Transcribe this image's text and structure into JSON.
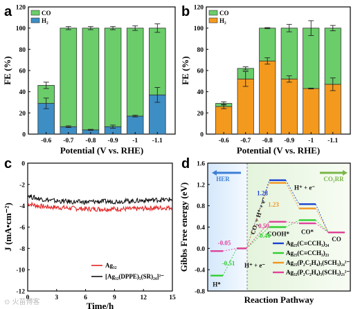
{
  "chart_data": [
    {
      "panel": "a",
      "type": "bar",
      "stacked": true,
      "categories": [
        "-0.6",
        "-0.7",
        "-0.8",
        "-0.9",
        "-1",
        "-1.1"
      ],
      "series": [
        {
          "name": "CO",
          "color": "#6acd6a",
          "values": [
            17,
            93,
            96,
            93,
            83,
            63
          ]
        },
        {
          "name": "H2",
          "color": "#3d8ec4",
          "values": [
            29,
            7,
            4,
            7,
            17,
            37
          ]
        }
      ],
      "h2_errors": [
        5,
        0.8,
        0.5,
        1.5,
        0.8,
        7
      ],
      "total_errors": [
        3,
        1.5,
        1.5,
        1.5,
        2.2,
        4
      ],
      "xlabel": "Potential (V vs. RHE)",
      "ylabel": "FE (%)",
      "ylim": [
        0,
        120
      ],
      "yticks": [
        "0",
        "20",
        "40",
        "60",
        "80",
        "100",
        "120"
      ],
      "legend": [
        "CO",
        "H₂"
      ]
    },
    {
      "panel": "b",
      "type": "bar",
      "stacked": true,
      "categories": [
        "-0.6",
        "-0.7",
        "-0.8",
        "-0.9",
        "-1",
        "-1.1"
      ],
      "series": [
        {
          "name": "H2",
          "color": "#f39a1e",
          "values": [
            26,
            52,
            69,
            52,
            43,
            47
          ]
        },
        {
          "name": "CO",
          "color": "#6acd6a",
          "values": [
            3,
            10,
            31,
            48,
            57,
            53
          ]
        }
      ],
      "h2_errors": [
        2,
        7,
        3,
        3,
        0.4,
        6
      ],
      "total_errors": [
        1.5,
        1.5,
        0.5,
        3.5,
        7,
        2.5
      ],
      "xlabel": "Potential (V vs. RHE)",
      "ylabel": "FE (%)",
      "ylim": [
        0,
        120
      ],
      "yticks": [
        "0",
        "20",
        "40",
        "60",
        "80",
        "100",
        "120"
      ],
      "legend": [
        "CO",
        "H₂"
      ]
    },
    {
      "panel": "c",
      "type": "line",
      "xlabel": "Time/h",
      "ylabel": "J (mA•cm⁻²)",
      "xlim": [
        0,
        15
      ],
      "ylim": [
        -12,
        0
      ],
      "xticks": [
        "0",
        "3",
        "6",
        "9",
        "12",
        "15"
      ],
      "yticks": [
        "-12",
        "-10",
        "-8",
        "-6",
        "-4",
        "-2",
        "0"
      ],
      "series": [
        {
          "name": "Ag32",
          "color": "#e32222",
          "x": [
            0,
            0.5,
            1,
            2,
            3,
            4,
            5,
            6,
            7,
            8,
            9,
            10,
            11,
            12,
            13,
            14,
            15
          ],
          "y": [
            -3.8,
            -3.9,
            -4.0,
            -4.1,
            -4.15,
            -4.2,
            -4.25,
            -4.3,
            -4.3,
            -4.3,
            -4.3,
            -4.3,
            -4.3,
            -4.25,
            -4.2,
            -4.2,
            -4.15
          ]
        },
        {
          "name": "[Ag32(DPPE)5(SR)24]2-",
          "color": "#111111",
          "x": [
            0,
            0.5,
            1,
            2,
            3,
            4,
            5,
            6,
            7,
            8,
            9,
            10,
            11,
            12,
            13,
            14,
            15
          ],
          "y": [
            -3.0,
            -3.2,
            -3.3,
            -3.45,
            -3.55,
            -3.6,
            -3.65,
            -3.65,
            -3.6,
            -3.6,
            -3.6,
            -3.55,
            -3.55,
            -3.5,
            -3.45,
            -3.45,
            -3.4
          ]
        }
      ],
      "legend": [
        "Ag₃₂",
        "[Ag₃₂(DPPE)₅(SR)₂₄]²⁻"
      ]
    },
    {
      "panel": "d",
      "type": "line",
      "xlabel": "Reaction Pathway",
      "ylabel": "Gibbs Free energy (eV)",
      "ylim": [
        -0.8,
        1.6
      ],
      "yticks": [
        "-0.8",
        "-0.4",
        "0.0",
        "0.4",
        "0.8",
        "1.2",
        "1.6"
      ],
      "regions": [
        "HER",
        "CO₂RR"
      ],
      "states": [
        "H*",
        "H⁺ + e⁻",
        "CO₂ + H⁺ + e⁻",
        "COOH*",
        "H⁺ + e⁻",
        "CO*",
        "CO"
      ],
      "series": [
        {
          "name": "Ag25(C≡CCH3)24",
          "color": "#1a3fd1",
          "levels": [
            null,
            null,
            0.0,
            1.28,
            1.28,
            0.83,
            0.3
          ]
        },
        {
          "name": "Ag25(C≡CCH3)23",
          "color": "#2fcf2f",
          "levels": [
            -0.51,
            0.0,
            0.0,
            0.4,
            0.4,
            0.53,
            0.3
          ]
        },
        {
          "name": "Ag25(P2C2H4)5(SCH3)24 2-",
          "color": "#f2951f",
          "levels": [
            null,
            null,
            0.0,
            1.23,
            1.23,
            0.75,
            0.3
          ]
        },
        {
          "name": "Ag32(P2C2H4)5(SCH3)23 2-",
          "color": "#e0419b",
          "levels": [
            -0.05,
            0.0,
            0.0,
            0.5,
            0.5,
            0.47,
            0.3
          ]
        }
      ],
      "annotations": [
        "-0.51",
        "-0.05",
        "1.28",
        "1.23",
        "0.50",
        "0.40"
      ],
      "legend": [
        "Ag₂₅(C≡CCH₃)₂₄",
        "Ag₂₅(C≡CCH₃)₂₃",
        "Ag₂₅(P₂C₂H₄)₅(SCH₃)₂₄²⁻",
        "Ag₃₂(P₂C₂H₄)₅(SCH₃)₂₃²⁻"
      ]
    }
  ],
  "panel_labels": [
    "a",
    "b",
    "c",
    "d"
  ],
  "watermark": "⊙ 火苗博客"
}
